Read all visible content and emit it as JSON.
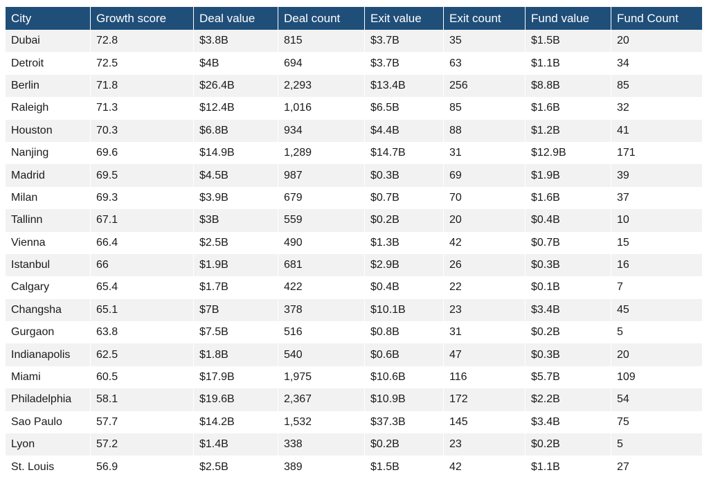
{
  "colors": {
    "header_bg": "#1f4e79",
    "header_text": "#ffffff",
    "row_alt": "#f2f2f2"
  },
  "table": {
    "headers": [
      "City",
      "Growth score",
      "Deal value",
      "Deal count",
      "Exit value",
      "Exit count",
      "Fund value",
      "Fund Count"
    ],
    "rows": [
      [
        "Dubai",
        "72.8",
        "$3.8B",
        "815",
        "$3.7B",
        "35",
        "$1.5B",
        "20"
      ],
      [
        "Detroit",
        "72.5",
        "$4B",
        "694",
        "$3.7B",
        "63",
        "$1.1B",
        "34"
      ],
      [
        "Berlin",
        "71.8",
        "$26.4B",
        "2,293",
        "$13.4B",
        "256",
        "$8.8B",
        "85"
      ],
      [
        "Raleigh",
        "71.3",
        "$12.4B",
        "1,016",
        "$6.5B",
        "85",
        "$1.6B",
        "32"
      ],
      [
        "Houston",
        "70.3",
        "$6.8B",
        "934",
        "$4.4B",
        "88",
        "$1.2B",
        "41"
      ],
      [
        "Nanjing",
        "69.6",
        "$14.9B",
        "1,289",
        "$14.7B",
        "31",
        "$12.9B",
        "171"
      ],
      [
        "Madrid",
        "69.5",
        "$4.5B",
        "987",
        "$0.3B",
        "69",
        "$1.9B",
        "39"
      ],
      [
        "Milan",
        "69.3",
        "$3.9B",
        "679",
        "$0.7B",
        "70",
        "$1.6B",
        "37"
      ],
      [
        "Tallinn",
        "67.1",
        "$3B",
        "559",
        "$0.2B",
        "20",
        "$0.4B",
        "10"
      ],
      [
        "Vienna",
        "66.4",
        "$2.5B",
        "490",
        "$1.3B",
        "42",
        "$0.7B",
        "15"
      ],
      [
        "Istanbul",
        "66",
        "$1.9B",
        "681",
        "$2.9B",
        "26",
        "$0.3B",
        "16"
      ],
      [
        "Calgary",
        "65.4",
        "$1.7B",
        "422",
        "$0.4B",
        "22",
        "$0.1B",
        "7"
      ],
      [
        "Changsha",
        "65.1",
        "$7B",
        "378",
        "$10.1B",
        "23",
        "$3.4B",
        "45"
      ],
      [
        "Gurgaon",
        "63.8",
        "$7.5B",
        "516",
        "$0.8B",
        "31",
        "$0.2B",
        "5"
      ],
      [
        "Indianapolis",
        "62.5",
        "$1.8B",
        "540",
        "$0.6B",
        "47",
        "$0.3B",
        "20"
      ],
      [
        "Miami",
        "60.5",
        "$17.9B",
        "1,975",
        "$10.6B",
        "116",
        "$5.7B",
        "109"
      ],
      [
        "Philadelphia",
        "58.1",
        "$19.6B",
        "2,367",
        "$10.9B",
        "172",
        "$2.2B",
        "54"
      ],
      [
        "Sao Paulo",
        "57.7",
        "$14.2B",
        "1,532",
        "$37.3B",
        "145",
        "$3.4B",
        "75"
      ],
      [
        "Lyon",
        "57.2",
        "$1.4B",
        "338",
        "$0.2B",
        "23",
        "$0.2B",
        "5"
      ],
      [
        "St. Louis",
        "56.9",
        "$2.5B",
        "389",
        "$1.5B",
        "42",
        "$1.1B",
        "27"
      ]
    ]
  }
}
